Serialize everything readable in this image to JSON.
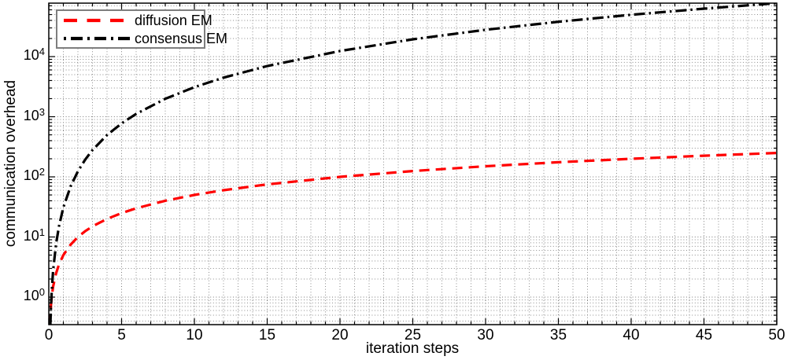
{
  "chart_data": {
    "type": "line",
    "title": "",
    "xlabel": "iteration steps",
    "ylabel": "communication overhead",
    "x_scale": "linear",
    "y_scale": "log",
    "xlim": [
      0,
      50
    ],
    "ylim": [
      0.35,
      77500
    ],
    "x_ticks": [
      0,
      5,
      10,
      15,
      20,
      25,
      30,
      35,
      40,
      45,
      50
    ],
    "x_tick_labels": [
      "0",
      "5",
      "10",
      "15",
      "20",
      "25",
      "30",
      "35",
      "40",
      "45",
      "50"
    ],
    "y_ticks": [
      {
        "base": "10",
        "exp": "0",
        "value": 1
      },
      {
        "base": "10",
        "exp": "1",
        "value": 10
      },
      {
        "base": "10",
        "exp": "2",
        "value": 100
      },
      {
        "base": "10",
        "exp": "3",
        "value": 1000
      },
      {
        "base": "10",
        "exp": "4",
        "value": 10000
      }
    ],
    "grid": "major and minor, dotted",
    "legend_position": "top-left",
    "series": [
      {
        "name": "diffusion EM",
        "color": "#ff0000",
        "style": "dashed",
        "x": [
          0.07,
          0.1,
          0.15,
          0.2,
          0.3,
          0.5,
          0.7,
          1,
          1.5,
          2,
          2.5,
          3,
          4,
          5,
          6,
          8,
          10,
          12,
          15,
          20,
          25,
          30,
          35,
          40,
          45,
          50
        ],
        "y": [
          0.35,
          0.5,
          0.75,
          1,
          1.5,
          2.5,
          3.5,
          5,
          7.5,
          10,
          12.5,
          15,
          20,
          25,
          30,
          40,
          50,
          60,
          75,
          100,
          125,
          150,
          175,
          200,
          225,
          250
        ]
      },
      {
        "name": "consensus EM",
        "color": "#000000",
        "style": "dash-dot",
        "x": [
          0.106,
          0.15,
          0.2,
          0.3,
          0.5,
          0.7,
          1,
          1.5,
          2,
          2.5,
          3,
          4,
          5,
          6,
          8,
          10,
          12,
          15,
          20,
          25,
          30,
          35,
          40,
          45,
          50
        ],
        "y": [
          0.35,
          0.7,
          1.24,
          2.79,
          7.75,
          15.2,
          31,
          69.8,
          124,
          194,
          279,
          496,
          775,
          1116,
          1984,
          3100,
          4464,
          6975,
          12400,
          19375,
          27900,
          37975,
          49600,
          62775,
          77500
        ]
      }
    ],
    "colors": {
      "axis": "#000000",
      "grid_minor": "#8c8c8c",
      "grid_major": "#7a7a7a",
      "legend_border": "#7e7e7e",
      "background": "#ffffff"
    }
  }
}
